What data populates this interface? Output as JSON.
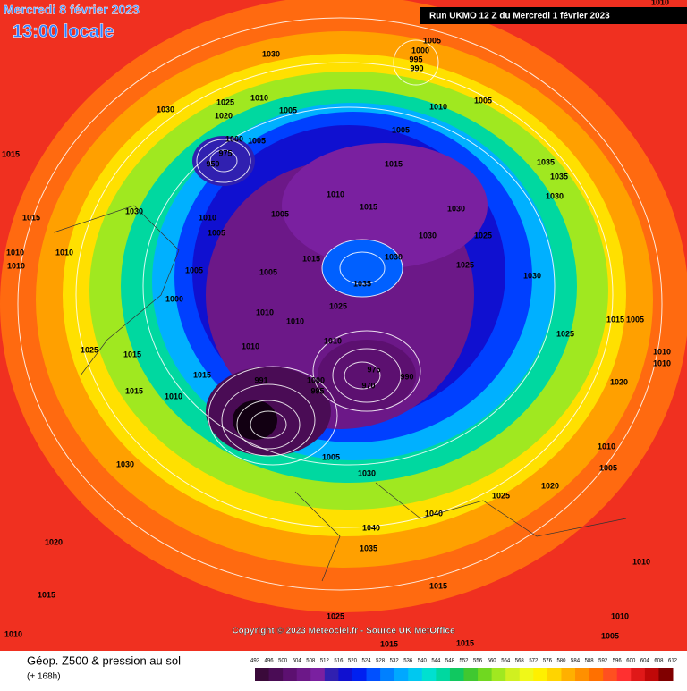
{
  "header": {
    "date": "Mercredi 8 février 2023",
    "time": "13:00 locale",
    "run": "Run UKMO 12 Z du Mercredi 1 février 2023"
  },
  "copyright": "Copyright © 2023 Meteociel.fr - Source UK MetOffice",
  "footer": {
    "title": "Géop. Z500 & pression au sol",
    "lead": "(+ 168h)"
  },
  "pressure_labels": [
    "1010",
    "1005",
    "1000",
    "995",
    "990",
    "1030",
    "1030",
    "1015",
    "1010",
    "1025",
    "1020",
    "1005",
    "1010",
    "1005",
    "1005",
    "1000",
    "1005",
    "975",
    "950",
    "1015",
    "1035",
    "1035",
    "1030",
    "1010",
    "1015",
    "1030",
    "1025",
    "1030",
    "1015",
    "1010",
    "1005",
    "1005",
    "1030",
    "1030",
    "1025",
    "1035",
    "1025",
    "1005",
    "1005",
    "1015",
    "1000",
    "1010",
    "1010",
    "1030",
    "1015",
    "1005",
    "1025",
    "1010",
    "1025",
    "1010",
    "1015",
    "1015",
    "991",
    "1000",
    "995",
    "975",
    "970",
    "990",
    "1015",
    "1010",
    "1030",
    "1005",
    "1030",
    "1025",
    "1020",
    "1040",
    "1040",
    "1035",
    "1020",
    "1015",
    "1015",
    "1025",
    "1010",
    "1015",
    "1015",
    "1005",
    "1010",
    "1010",
    "1005",
    "1010",
    "1020",
    "1010",
    "1010",
    "1010",
    "1010",
    "1010"
  ],
  "colorbar": {
    "ticks": [
      492,
      496,
      500,
      504,
      508,
      512,
      516,
      520,
      524,
      528,
      532,
      536,
      540,
      544,
      548,
      552,
      556,
      560,
      564,
      568,
      572,
      576,
      580,
      584,
      588,
      592,
      596,
      600,
      604,
      608,
      612
    ],
    "colors": [
      "#3a0a3a",
      "#4a0c55",
      "#5c1070",
      "#6c1888",
      "#7a20a0",
      "#3020b0",
      "#1010d0",
      "#0020f0",
      "#0050ff",
      "#0080ff",
      "#00a8ff",
      "#00c8f0",
      "#00e0d0",
      "#00d8a0",
      "#10c860",
      "#40c830",
      "#70d820",
      "#a0e820",
      "#d0f020",
      "#f0f818",
      "#fff000",
      "#ffd400",
      "#ffb000",
      "#ff9000",
      "#ff7000",
      "#ff5020",
      "#ff3030",
      "#e01818",
      "#c00808",
      "#800000"
    ]
  }
}
